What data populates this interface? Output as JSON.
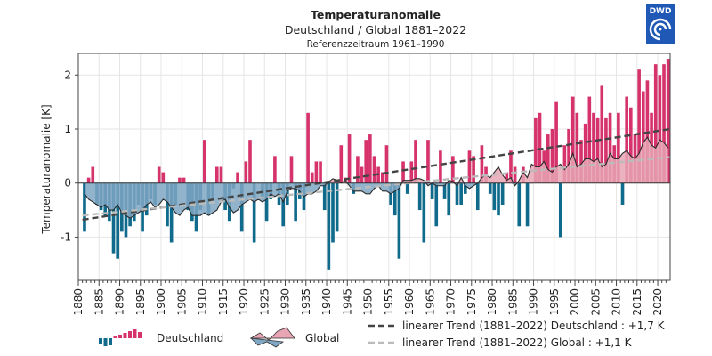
{
  "logo": {
    "text": "DWD"
  },
  "chart_data": {
    "type": "bar",
    "title": "Temperaturanomalie",
    "subtitle": "Deutschland / Global 1881–2022",
    "reference": "Referenzzeitraum 1961–1990",
    "ylabel": "Temperaturanomalie [K]",
    "xlabel": "",
    "xlim": [
      1880,
      2023
    ],
    "ylim": [
      -1.8,
      2.4
    ],
    "yticks": [
      -1,
      0,
      1,
      2
    ],
    "xticks": [
      1880,
      1885,
      1890,
      1895,
      1900,
      1905,
      1910,
      1915,
      1920,
      1925,
      1930,
      1935,
      1940,
      1945,
      1950,
      1955,
      1960,
      1965,
      1970,
      1975,
      1980,
      1985,
      1990,
      1995,
      2000,
      2005,
      2010,
      2015,
      2020
    ],
    "grid": true,
    "colors": {
      "positive": "#d6336c",
      "negative": "#0f6a8c",
      "global_fill": "#7fa6c3",
      "global_fill_pos": "#e8a5b4",
      "global_line": "#2b2b2b",
      "trend_de": "#444444",
      "trend_global": "#bbbbbb"
    },
    "series": [
      {
        "name": "Deutschland",
        "type": "bar",
        "start_year": 1881,
        "values": [
          -0.9,
          0.1,
          0.3,
          -0.4,
          -0.5,
          -0.6,
          -0.7,
          -1.3,
          -1.4,
          -0.9,
          -1.0,
          -0.8,
          -0.7,
          -0.4,
          -0.9,
          -0.6,
          -0.3,
          -0.4,
          0.3,
          0.2,
          -0.8,
          -1.1,
          -0.4,
          0.1,
          0.1,
          -0.5,
          -0.7,
          -0.9,
          -0.5,
          0.8,
          -0.6,
          -0.3,
          0.3,
          0.3,
          -0.5,
          -0.7,
          -0.1,
          0.2,
          -0.9,
          0.4,
          0.8,
          -1.1,
          0.0,
          -0.3,
          -0.7,
          -0.3,
          0.5,
          -0.4,
          -0.8,
          -0.4,
          0.5,
          -0.7,
          -0.3,
          -0.5,
          1.3,
          0.2,
          0.4,
          0.4,
          -0.5,
          -1.6,
          -1.1,
          -0.9,
          0.7,
          0.1,
          0.9,
          -0.2,
          0.5,
          0.3,
          0.8,
          0.9,
          0.5,
          0.3,
          0.2,
          0.7,
          -0.4,
          -0.6,
          -1.4,
          0.4,
          -0.2,
          0.4,
          0.8,
          -0.5,
          -1.1,
          0.8,
          -0.3,
          -0.8,
          0.6,
          -0.3,
          -0.6,
          0.5,
          -0.4,
          -0.4,
          -0.2,
          0.6,
          0.5,
          -0.5,
          0.7,
          0.3,
          -0.2,
          -0.5,
          -0.6,
          -0.4,
          0.2,
          0.6,
          0.3,
          -0.8,
          0.3,
          -0.8,
          0.0,
          1.2,
          1.3,
          0.6,
          0.9,
          1.0,
          1.5,
          -1.0,
          0.7,
          1.0,
          1.6,
          1.3,
          0.8,
          1.1,
          1.6,
          1.3,
          1.2,
          1.8,
          1.2,
          1.3,
          0.7,
          1.3,
          -0.4,
          1.6,
          1.4,
          0.9,
          2.1,
          1.7,
          1.9,
          1.3,
          2.2,
          2.0,
          2.2,
          2.3
        ]
      },
      {
        "name": "Global",
        "type": "area",
        "start_year": 1881,
        "values": [
          -0.2,
          -0.3,
          -0.35,
          -0.4,
          -0.45,
          -0.4,
          -0.5,
          -0.5,
          -0.4,
          -0.55,
          -0.6,
          -0.65,
          -0.6,
          -0.55,
          -0.5,
          -0.4,
          -0.35,
          -0.45,
          -0.4,
          -0.3,
          -0.35,
          -0.45,
          -0.55,
          -0.6,
          -0.5,
          -0.45,
          -0.6,
          -0.6,
          -0.6,
          -0.55,
          -0.6,
          -0.55,
          -0.5,
          -0.35,
          -0.3,
          -0.45,
          -0.55,
          -0.5,
          -0.4,
          -0.35,
          -0.3,
          -0.35,
          -0.3,
          -0.35,
          -0.3,
          -0.2,
          -0.25,
          -0.2,
          -0.35,
          -0.15,
          -0.1,
          -0.1,
          -0.15,
          -0.25,
          -0.2,
          -0.2,
          -0.15,
          -0.05,
          -0.05,
          0.02,
          0.08,
          0.05,
          0.0,
          0.05,
          -0.05,
          -0.15,
          -0.15,
          -0.15,
          -0.2,
          -0.2,
          -0.1,
          -0.05,
          -0.15,
          -0.15,
          -0.2,
          -0.15,
          -0.1,
          0.05,
          0.05,
          0.05,
          0.08,
          0.08,
          0.05,
          -0.05,
          0.0,
          -0.05,
          -0.05,
          -0.05,
          0.05,
          0.03,
          -0.05,
          0.1,
          -0.05,
          -0.1,
          -0.05,
          0.0,
          0.1,
          0.15,
          0.1,
          0.2,
          0.3,
          0.15,
          0.05,
          0.1,
          -0.05,
          0.05,
          0.2,
          0.1,
          0.35,
          0.3,
          0.3,
          0.4,
          0.25,
          0.2,
          0.3,
          0.35,
          0.25,
          0.35,
          0.55,
          0.3,
          0.35,
          0.45,
          0.45,
          0.4,
          0.45,
          0.3,
          0.35,
          0.55,
          0.45,
          0.45,
          0.55,
          0.6,
          0.5,
          0.45,
          0.55,
          0.75,
          0.85,
          0.7,
          0.65,
          0.8,
          0.75,
          0.65
        ]
      }
    ],
    "trend_lines": [
      {
        "name": "Deutschland",
        "from": [
          1881,
          -0.68
        ],
        "to": [
          2022,
          1.0
        ],
        "label": "linearer Trend (1881–2022) Deutschland : +1,7 K"
      },
      {
        "name": "Global",
        "from": [
          1881,
          -0.6
        ],
        "to": [
          2022,
          0.48
        ],
        "label": "linearer Trend (1881–2022) Global : +1,1 K"
      }
    ],
    "legend": [
      {
        "label": "Deutschland",
        "kind": "bars"
      },
      {
        "label": "Global",
        "kind": "area"
      }
    ]
  }
}
